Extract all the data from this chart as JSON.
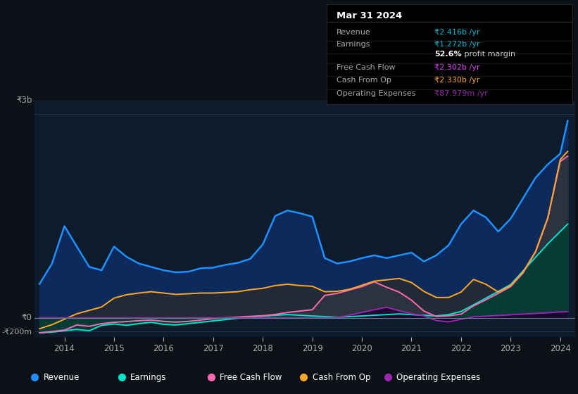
{
  "bg_color": "#0d1117",
  "plot_bg_color": "#0d1b2a",
  "grid_color": "#253a5e",
  "years": [
    2013.5,
    2013.75,
    2014.0,
    2014.25,
    2014.5,
    2014.75,
    2015.0,
    2015.25,
    2015.5,
    2015.75,
    2016.0,
    2016.25,
    2016.5,
    2016.75,
    2017.0,
    2017.25,
    2017.5,
    2017.75,
    2018.0,
    2018.25,
    2018.5,
    2018.75,
    2019.0,
    2019.25,
    2019.5,
    2019.75,
    2020.0,
    2020.25,
    2020.5,
    2020.75,
    2021.0,
    2021.25,
    2021.5,
    2021.75,
    2022.0,
    2022.25,
    2022.5,
    2022.75,
    2023.0,
    2023.25,
    2023.5,
    2023.75,
    2024.0,
    2024.15
  ],
  "revenue": [
    500000000,
    800000000,
    1350000000,
    1050000000,
    750000000,
    700000000,
    1050000000,
    900000000,
    800000000,
    750000000,
    700000000,
    670000000,
    680000000,
    730000000,
    740000000,
    780000000,
    810000000,
    870000000,
    1080000000,
    1500000000,
    1580000000,
    1540000000,
    1490000000,
    880000000,
    800000000,
    830000000,
    880000000,
    920000000,
    880000000,
    920000000,
    960000000,
    830000000,
    920000000,
    1070000000,
    1380000000,
    1580000000,
    1480000000,
    1270000000,
    1460000000,
    1760000000,
    2060000000,
    2260000000,
    2416000000,
    2900000000
  ],
  "earnings": [
    -220000000,
    -210000000,
    -190000000,
    -170000000,
    -190000000,
    -110000000,
    -90000000,
    -110000000,
    -85000000,
    -65000000,
    -95000000,
    -105000000,
    -85000000,
    -65000000,
    -45000000,
    -25000000,
    -5000000,
    15000000,
    25000000,
    38000000,
    48000000,
    38000000,
    28000000,
    18000000,
    8000000,
    18000000,
    28000000,
    38000000,
    48000000,
    58000000,
    48000000,
    38000000,
    28000000,
    48000000,
    95000000,
    190000000,
    290000000,
    390000000,
    490000000,
    690000000,
    890000000,
    1090000000,
    1272000000,
    1380000000
  ],
  "cash_from_op": [
    -160000000,
    -100000000,
    -20000000,
    60000000,
    110000000,
    160000000,
    290000000,
    340000000,
    365000000,
    385000000,
    365000000,
    345000000,
    355000000,
    365000000,
    365000000,
    375000000,
    385000000,
    415000000,
    435000000,
    475000000,
    495000000,
    475000000,
    465000000,
    385000000,
    390000000,
    420000000,
    480000000,
    540000000,
    560000000,
    580000000,
    520000000,
    390000000,
    300000000,
    300000000,
    380000000,
    565000000,
    495000000,
    380000000,
    475000000,
    675000000,
    975000000,
    1475000000,
    2330000000,
    2450000000
  ],
  "free_cash_flow": [
    -220000000,
    -200000000,
    -180000000,
    -105000000,
    -125000000,
    -85000000,
    -65000000,
    -55000000,
    -42000000,
    -32000000,
    -52000000,
    -62000000,
    -52000000,
    -32000000,
    -12000000,
    2000000,
    12000000,
    22000000,
    32000000,
    50000000,
    80000000,
    100000000,
    120000000,
    330000000,
    360000000,
    410000000,
    460000000,
    530000000,
    450000000,
    380000000,
    260000000,
    100000000,
    20000000,
    30000000,
    55000000,
    175000000,
    265000000,
    360000000,
    460000000,
    660000000,
    965000000,
    1465000000,
    2302000000,
    2380000000
  ],
  "op_expenses": [
    0,
    0,
    0,
    0,
    0,
    0,
    0,
    0,
    0,
    0,
    0,
    0,
    0,
    0,
    0,
    0,
    0,
    0,
    0,
    0,
    0,
    0,
    0,
    0,
    0,
    40000000,
    80000000,
    120000000,
    155000000,
    105000000,
    60000000,
    30000000,
    -40000000,
    -60000000,
    -20000000,
    15000000,
    25000000,
    35000000,
    45000000,
    55000000,
    65000000,
    75000000,
    87979000,
    90000000
  ],
  "revenue_color": "#1e90ff",
  "revenue_fill": "#0d2a5c",
  "earnings_color": "#00e5cc",
  "earnings_fill": "#003d35",
  "free_cash_flow_color": "#ff69b4",
  "cash_from_op_color": "#ffa726",
  "op_expenses_color": "#9c27b0",
  "zero_line_color": "#6a7a8a",
  "ylim": [
    -280000000,
    3200000000
  ],
  "xlim": [
    2013.4,
    2024.3
  ],
  "xtick_years": [
    2014,
    2015,
    2016,
    2017,
    2018,
    2019,
    2020,
    2021,
    2022,
    2023,
    2024
  ],
  "ylabel_top": "₹3b",
  "ylabel_zero": "₹0",
  "ylabel_neg": "-₹200m",
  "y_top": 3000000000,
  "y_zero": 0,
  "y_neg": -200000000,
  "info_date": "Mar 31 2024",
  "info_rows": [
    {
      "label": "Revenue",
      "value": "₹2.416b /yr",
      "value_color": "#00bcd4"
    },
    {
      "label": "Earnings",
      "value": "₹1.272b /yr",
      "value_color": "#00bcd4"
    },
    {
      "label": "",
      "value": "52.6%",
      "value_color": "#ffffff",
      "suffix": " profit margin"
    },
    {
      "label": "Free Cash Flow",
      "value": "₹2.302b /yr",
      "value_color": "#e040fb"
    },
    {
      "label": "Cash From Op",
      "value": "₹2.330b /yr",
      "value_color": "#ffa726"
    },
    {
      "label": "Operating Expenses",
      "value": "₹87.979m /yr",
      "value_color": "#9c27b0"
    }
  ],
  "legend_items": [
    {
      "label": "Revenue",
      "color": "#1e90ff"
    },
    {
      "label": "Earnings",
      "color": "#00e5cc"
    },
    {
      "label": "Free Cash Flow",
      "color": "#ff69b4"
    },
    {
      "label": "Cash From Op",
      "color": "#ffa726"
    },
    {
      "label": "Operating Expenses",
      "color": "#9c27b0"
    }
  ]
}
